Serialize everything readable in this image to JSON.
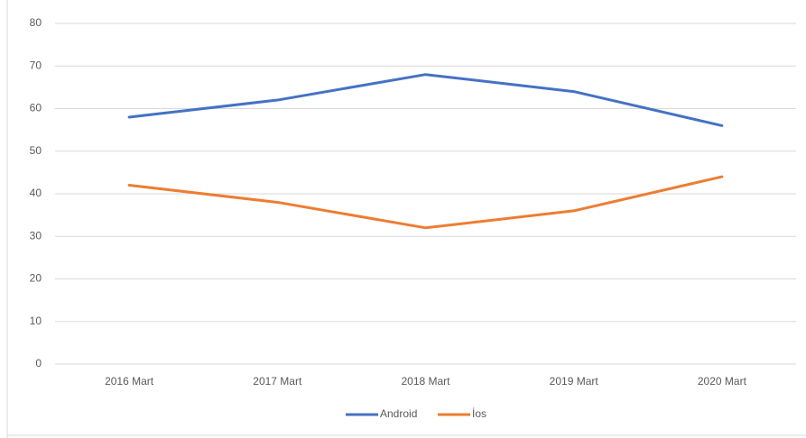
{
  "chart_data": {
    "type": "line",
    "categories": [
      "2016 Mart",
      "2017 Mart",
      "2018 Mart",
      "2019 Mart",
      "2020 Mart"
    ],
    "series": [
      {
        "name": "Android",
        "color": "#4472c4",
        "values": [
          58,
          62,
          68,
          64,
          56
        ]
      },
      {
        "name": "İos",
        "color": "#ed7d31",
        "values": [
          42,
          38,
          32,
          36,
          44
        ]
      }
    ],
    "ylim": [
      0,
      80
    ],
    "yticks": [
      0,
      10,
      20,
      30,
      40,
      50,
      60,
      70,
      80
    ],
    "grid": true,
    "legend": "bottom"
  }
}
